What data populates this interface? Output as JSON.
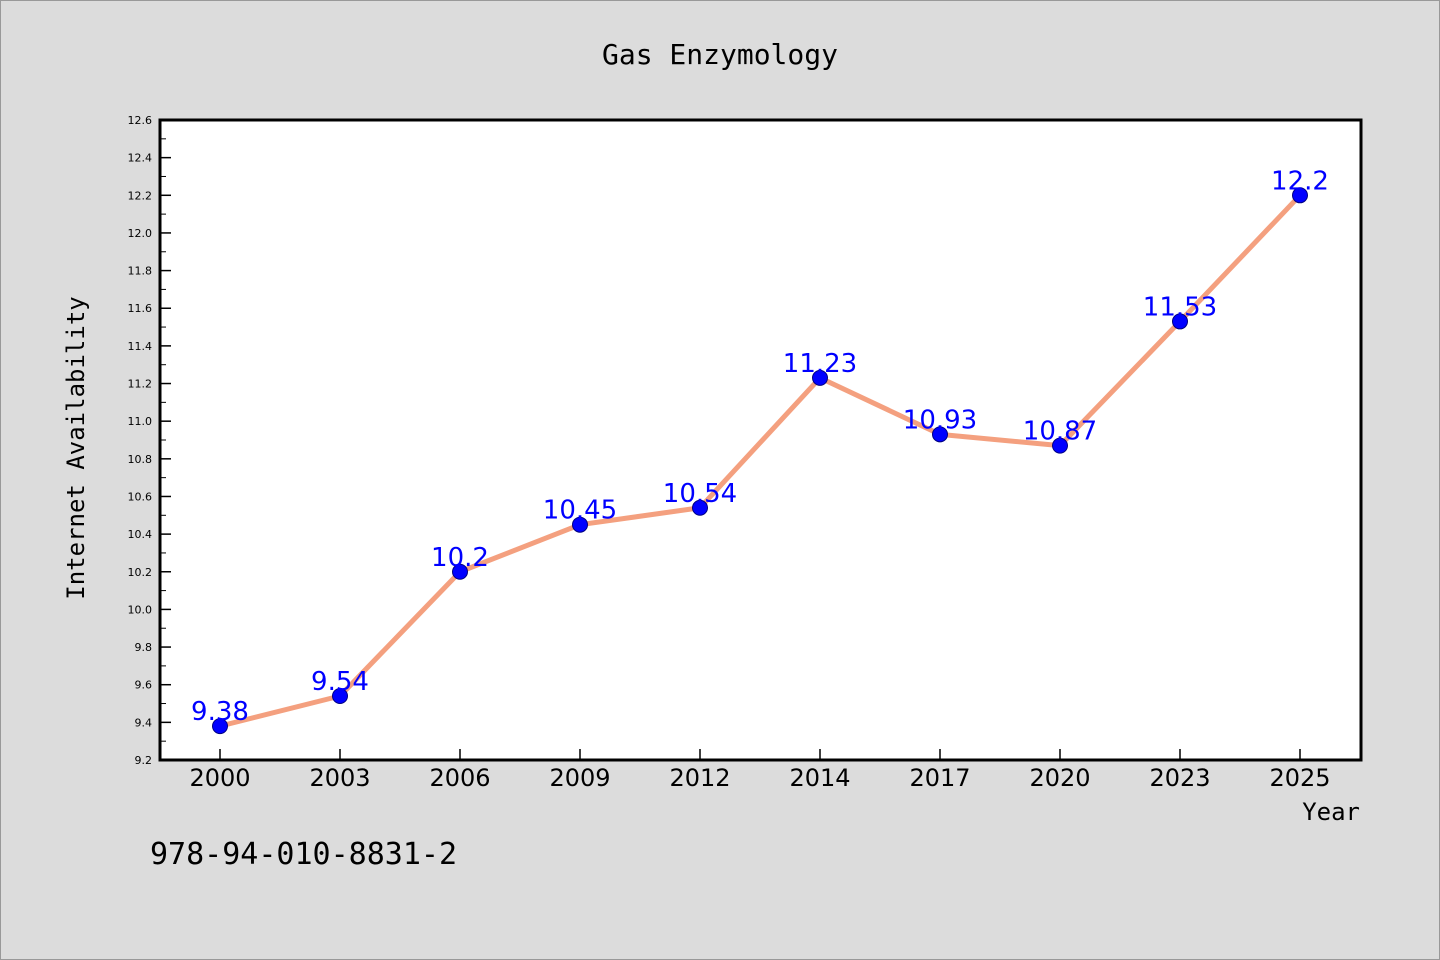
{
  "chart_data": {
    "type": "line",
    "title": "Gas Enzymology",
    "xlabel": "Year",
    "ylabel": "Internet Availability",
    "categories": [
      "2000",
      "2003",
      "2006",
      "2009",
      "2012",
      "2014",
      "2017",
      "2020",
      "2023",
      "2025"
    ],
    "series": [
      {
        "values": [
          9.38,
          9.54,
          10.2,
          10.45,
          10.54,
          11.23,
          10.93,
          10.87,
          11.53,
          12.2
        ],
        "labels": [
          "9.38",
          "9.54",
          "10.2",
          "10.45",
          "10.54",
          "11.23",
          "10.93",
          "10.87",
          "11.53",
          "12.2"
        ]
      }
    ],
    "ylim": [
      9.2,
      12.6
    ],
    "yticks": [
      "9.2",
      "9.4",
      "9.6",
      "9.8",
      "10.0",
      "10.2",
      "10.4",
      "10.6",
      "10.8",
      "11.0",
      "11.2",
      "11.4",
      "11.6",
      "11.8",
      "12.0",
      "12.2",
      "12.4",
      "12.6"
    ],
    "grid": false,
    "legend": "none",
    "colors": {
      "line": "#f4a07f",
      "marker": "#0000ff",
      "data_label": "#0000ff",
      "plot_background": "#ffffff",
      "figure_background": "#dcdcdc"
    }
  },
  "footer": {
    "code": "978-94-010-8831-2"
  }
}
